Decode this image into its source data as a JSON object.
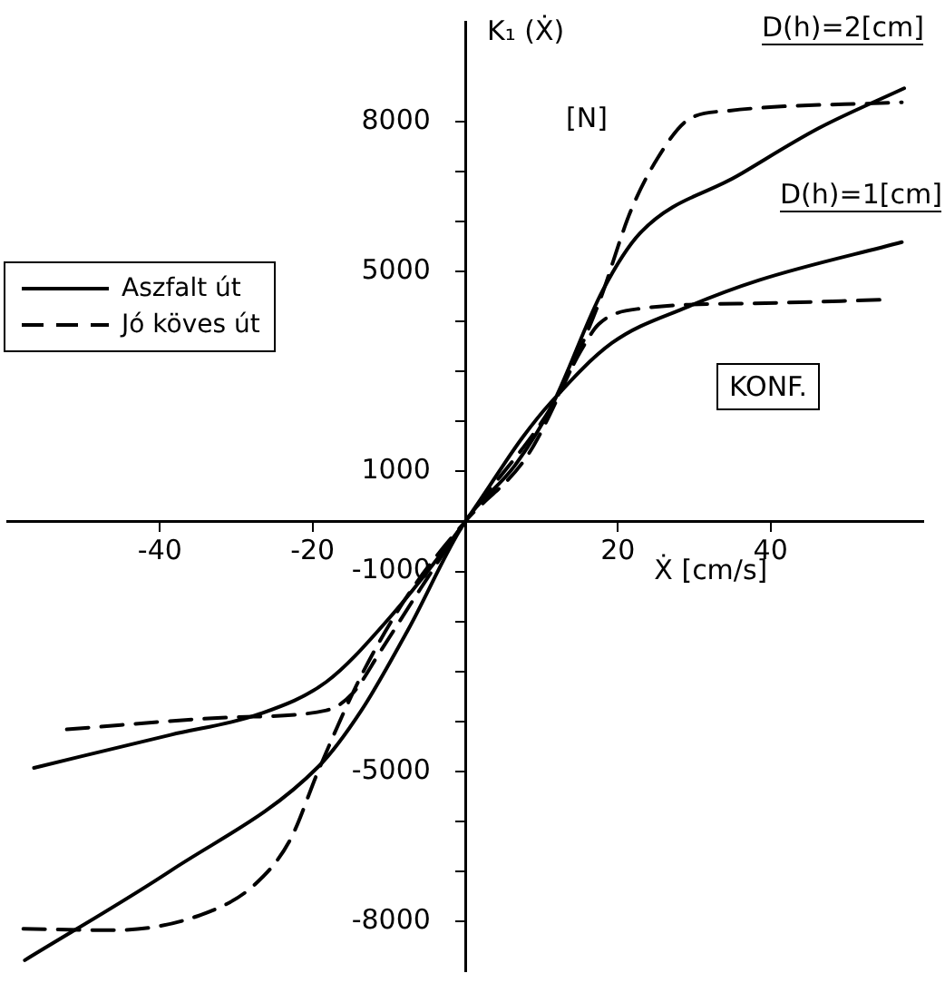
{
  "chart_data": {
    "type": "line",
    "ylabel": "K₁ (Ẋ)",
    "xlabel": "Ẋ [cm/s]",
    "xlim": [
      -60,
      60
    ],
    "ylim": [
      -9000,
      10000
    ],
    "xticks": [
      -40,
      -20,
      20,
      40
    ],
    "yticks": [
      -8000,
      {
        "value": -7000,
        "label": null
      },
      {
        "value": -6000,
        "label": null
      },
      -5000,
      {
        "value": -4000,
        "label": null
      },
      {
        "value": -3000,
        "label": null
      },
      {
        "value": -2000,
        "label": null
      },
      -1000,
      1000,
      {
        "value": 2000,
        "label": null
      },
      {
        "value": 3000,
        "label": null
      },
      {
        "value": 4000,
        "label": null
      },
      5000,
      {
        "value": 6000,
        "label": null
      },
      {
        "value": 7000,
        "label": null
      },
      8000
    ],
    "grid": false,
    "legend": "left",
    "marker": "none",
    "series": [
      {
        "name": "Aszfalt út",
        "color": "#000000",
        "line_style": "solid",
        "x": [
          -57.7,
          -38.6,
          -19.2,
          -13.6,
          -7.5,
          0,
          6.5,
          11.2,
          18,
          22.9,
          35.7,
          46.3,
          57.5,
          null,
          -56.5,
          -38.6,
          -26.9,
          -18.2,
          -10.5,
          0,
          7.5,
          11.2,
          19.2,
          29.2,
          38.5,
          57.2
        ],
        "values": [
          -8780,
          -6990,
          -4900,
          -3780,
          -2170,
          0,
          1120,
          2270,
          4620,
          5770,
          6920,
          7870,
          8670,
          null,
          -4930,
          -4270,
          -3850,
          -3210,
          -2030,
          0,
          1680,
          2380,
          3570,
          4300,
          4830,
          5590
        ]
      },
      {
        "name": "Jó köves út",
        "color": "#000000",
        "line_style": "dashed",
        "x": [
          -57.9,
          -46.3,
          -34.6,
          -27.6,
          -22.9,
          -19.2,
          -13.6,
          -7.5,
          0,
          8.2,
          12.9,
          17.5,
          21.7,
          25.2,
          29.2,
          34.6,
          57.2,
          null,
          -52.2,
          -30.8,
          -18.2,
          -14.7,
          -11.2,
          -5.8,
          0,
          11.2,
          15.2,
          17.5,
          22.9,
          39.3,
          55.4
        ],
        "values": [
          -8150,
          -8180,
          -7870,
          -7270,
          -6360,
          -4970,
          -3080,
          -1470,
          0,
          1330,
          2730,
          4370,
          6220,
          7270,
          8040,
          8220,
          8390,
          null,
          -4160,
          -3920,
          -3780,
          -3430,
          -2620,
          -1330,
          0,
          2270,
          3430,
          3950,
          4260,
          4370,
          4440
        ]
      }
    ],
    "annotations": [
      "D(h)=2[cm]",
      "D(h)=1[cm]",
      "[N]",
      "KONF."
    ]
  }
}
